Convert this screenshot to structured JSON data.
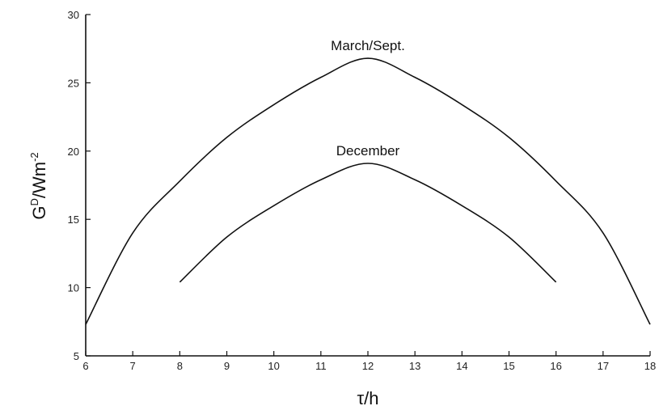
{
  "chart_data": {
    "type": "line",
    "title": "",
    "xlabel": "τ/h",
    "ylabel": {
      "base": "G",
      "sup1": "D",
      "mid": "/Wm",
      "sup2": "-2"
    },
    "xlim": [
      6,
      18
    ],
    "ylim": [
      5,
      30
    ],
    "xticks": [
      6,
      7,
      8,
      9,
      10,
      11,
      12,
      13,
      14,
      15,
      16,
      17,
      18
    ],
    "yticks": [
      5,
      10,
      15,
      20,
      25,
      30
    ],
    "grid": false,
    "series": [
      {
        "name": "March/Sept.",
        "x": [
          6,
          7,
          8,
          9,
          10,
          11,
          12,
          13,
          14,
          15,
          16,
          17,
          18
        ],
        "y": [
          7.3,
          14.0,
          17.8,
          21.0,
          23.4,
          25.4,
          26.8,
          25.4,
          23.4,
          21.0,
          17.8,
          14.0,
          7.3
        ]
      },
      {
        "name": "December",
        "x": [
          8,
          9,
          10,
          11,
          12,
          13,
          14,
          15,
          16
        ],
        "y": [
          10.4,
          13.7,
          16.0,
          17.9,
          19.1,
          17.9,
          16.0,
          13.7,
          10.4
        ]
      }
    ]
  }
}
